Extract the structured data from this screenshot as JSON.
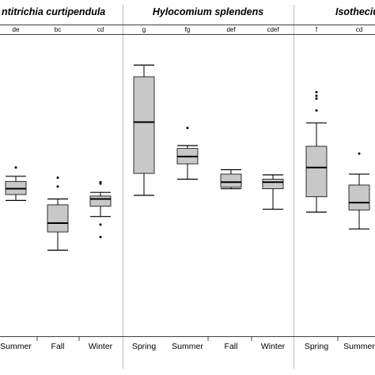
{
  "chart_data": {
    "type": "boxplot",
    "title": "",
    "xlabel": "",
    "ylabel": "",
    "ylim": [
      0,
      400
    ],
    "grid": false,
    "y_axis_printed": false,
    "colors": {
      "box_fill": "#c8c8c8",
      "stroke": "#000000",
      "panel_divider": "#bbbbbb"
    },
    "panels": [
      {
        "name": "Antitrichia curtipendula",
        "shown_name": "ntitrichia curtipendula",
        "groups": [
          {
            "season": "Summer",
            "letter": "de",
            "whisker_low": 178,
            "q1": 186,
            "median": 194,
            "q3": 204,
            "whisker_high": 211,
            "outliers": [
              223
            ]
          },
          {
            "season": "Fall",
            "letter": "bc",
            "whisker_low": 110,
            "q1": 135,
            "median": 147,
            "q3": 172,
            "whisker_high": 180,
            "outliers": [
              197,
              209
            ]
          },
          {
            "season": "Winter",
            "letter": "cd",
            "whisker_low": 156,
            "q1": 170,
            "median": 180,
            "q3": 184,
            "whisker_high": 189,
            "outliers": [
              128,
              145,
              201,
              203
            ]
          }
        ]
      },
      {
        "name": "Hylocomium splendens",
        "shown_name": "Hylocomium splendens",
        "groups": [
          {
            "season": "Spring",
            "letter": "g",
            "whisker_low": 185,
            "q1": 215,
            "median": 285,
            "q3": 347,
            "whisker_high": 363,
            "outliers": []
          },
          {
            "season": "Summer",
            "letter": "fg",
            "whisker_low": 207,
            "q1": 228,
            "median": 238,
            "q3": 249,
            "whisker_high": 253,
            "outliers": [
              277
            ]
          },
          {
            "season": "Fall",
            "letter": "def",
            "whisker_low": 194,
            "q1": 196,
            "median": 203,
            "q3": 214,
            "whisker_high": 220,
            "outliers": []
          },
          {
            "season": "Winter",
            "letter": "cdef",
            "whisker_low": 166,
            "q1": 194,
            "median": 203,
            "q3": 207,
            "whisker_high": 213,
            "outliers": []
          }
        ]
      },
      {
        "name": "Isothecium",
        "shown_name": "Isotheciu",
        "groups": [
          {
            "season": "Spring",
            "letter": "f",
            "whisker_low": 162,
            "q1": 183,
            "median": 223,
            "q3": 252,
            "whisker_high": 284,
            "outliers": [
              301,
              317,
              321,
              326
            ]
          },
          {
            "season": "Summer",
            "letter": "cd",
            "whisker_low": 139,
            "q1": 165,
            "median": 175,
            "q3": 199,
            "whisker_high": 214,
            "outliers": [
              242
            ]
          }
        ]
      }
    ]
  }
}
